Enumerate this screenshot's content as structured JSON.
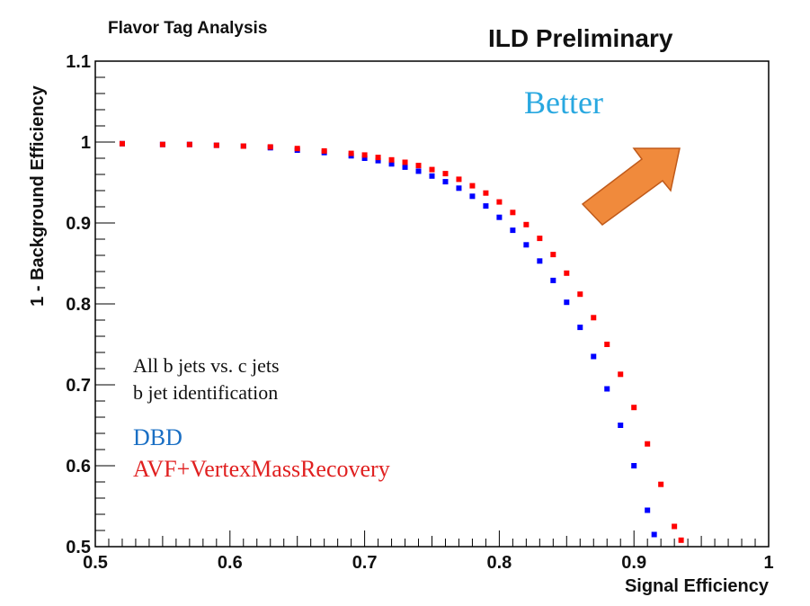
{
  "chart_data": {
    "type": "scatter",
    "title": "Flavor Tag Analysis",
    "experiment_label": "ILD Preliminary",
    "xlabel": "Signal Efficiency",
    "ylabel": "1 - Background Efficiency",
    "xlim": [
      0.5,
      1.0
    ],
    "ylim": [
      0.5,
      1.1
    ],
    "x_ticks": [
      "0.5",
      "0.6",
      "0.7",
      "0.8",
      "0.9",
      "1"
    ],
    "y_ticks": [
      "0.5",
      "0.6",
      "0.7",
      "0.8",
      "0.9",
      "1",
      "1.1"
    ],
    "annotations": {
      "better": "Better",
      "selection_line1": "All b jets vs. c jets",
      "selection_line2": "b jet identification"
    },
    "legend": [
      {
        "name": "DBD",
        "color": "#1a6fc4"
      },
      {
        "name": "AVF+VertexMassRecovery",
        "color": "#e02020"
      }
    ],
    "arrow_color": "#f08a3c",
    "better_color": "#29a8e0",
    "series": [
      {
        "name": "DBD",
        "color": "#0000ff",
        "points": [
          [
            0.52,
            0.998
          ],
          [
            0.55,
            0.997
          ],
          [
            0.57,
            0.997
          ],
          [
            0.59,
            0.996
          ],
          [
            0.61,
            0.995
          ],
          [
            0.63,
            0.993
          ],
          [
            0.65,
            0.99
          ],
          [
            0.67,
            0.987
          ],
          [
            0.69,
            0.983
          ],
          [
            0.7,
            0.98
          ],
          [
            0.71,
            0.977
          ],
          [
            0.72,
            0.973
          ],
          [
            0.73,
            0.969
          ],
          [
            0.74,
            0.964
          ],
          [
            0.75,
            0.958
          ],
          [
            0.76,
            0.951
          ],
          [
            0.77,
            0.943
          ],
          [
            0.78,
            0.933
          ],
          [
            0.79,
            0.921
          ],
          [
            0.8,
            0.907
          ],
          [
            0.81,
            0.891
          ],
          [
            0.82,
            0.873
          ],
          [
            0.83,
            0.853
          ],
          [
            0.84,
            0.829
          ],
          [
            0.85,
            0.802
          ],
          [
            0.86,
            0.771
          ],
          [
            0.87,
            0.735
          ],
          [
            0.88,
            0.695
          ],
          [
            0.89,
            0.65
          ],
          [
            0.9,
            0.6
          ],
          [
            0.91,
            0.545
          ],
          [
            0.915,
            0.515
          ]
        ]
      },
      {
        "name": "AVF+VertexMassRecovery",
        "color": "#ff0000",
        "points": [
          [
            0.52,
            0.998
          ],
          [
            0.55,
            0.997
          ],
          [
            0.57,
            0.997
          ],
          [
            0.59,
            0.996
          ],
          [
            0.61,
            0.995
          ],
          [
            0.63,
            0.994
          ],
          [
            0.65,
            0.992
          ],
          [
            0.67,
            0.989
          ],
          [
            0.69,
            0.986
          ],
          [
            0.7,
            0.984
          ],
          [
            0.71,
            0.981
          ],
          [
            0.72,
            0.978
          ],
          [
            0.73,
            0.975
          ],
          [
            0.74,
            0.971
          ],
          [
            0.75,
            0.966
          ],
          [
            0.76,
            0.961
          ],
          [
            0.77,
            0.954
          ],
          [
            0.78,
            0.946
          ],
          [
            0.79,
            0.937
          ],
          [
            0.8,
            0.926
          ],
          [
            0.81,
            0.913
          ],
          [
            0.82,
            0.898
          ],
          [
            0.83,
            0.881
          ],
          [
            0.84,
            0.861
          ],
          [
            0.85,
            0.838
          ],
          [
            0.86,
            0.812
          ],
          [
            0.87,
            0.783
          ],
          [
            0.88,
            0.75
          ],
          [
            0.89,
            0.713
          ],
          [
            0.9,
            0.672
          ],
          [
            0.91,
            0.627
          ],
          [
            0.92,
            0.577
          ],
          [
            0.93,
            0.525
          ],
          [
            0.935,
            0.508
          ]
        ]
      }
    ]
  }
}
